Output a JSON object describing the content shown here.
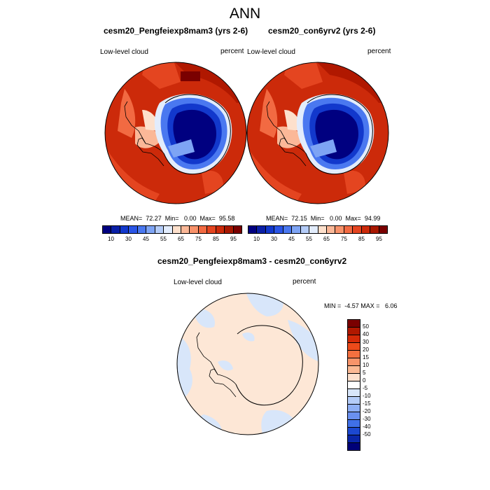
{
  "title": "ANN",
  "panels": [
    {
      "title": "cesm20_Pengfeiexp8mam3 (yrs 2-6)",
      "left_label": "Low-level cloud",
      "right_label": "percent",
      "stats": "MEAN=  72.27  Min=   0.00  Max=  95.58"
    },
    {
      "title": "cesm20_con6yrv2 (yrs 2-6)",
      "left_label": "Low-level cloud",
      "right_label": "percent",
      "stats": "MEAN=  72.15  Min=   0.00  Max=  94.99"
    }
  ],
  "diff_panel": {
    "title": "cesm20_Pengfeiexp8mam3 - cesm20_con6yrv2",
    "left_label": "Low-level cloud",
    "right_label": "percent",
    "stats": "MIN =  -4.57 MAX =   6.06"
  },
  "top_colorbar": {
    "colors": [
      "#000080",
      "#0a1fa6",
      "#1238cc",
      "#2a55e6",
      "#4a78f0",
      "#7ea4f4",
      "#b4ccf8",
      "#e2ecfc",
      "#fde0cc",
      "#fbb898",
      "#f8926a",
      "#f26a42",
      "#e44520",
      "#cc2a0a",
      "#a81800",
      "#7a0000"
    ],
    "labels": [
      "10",
      "30",
      "45",
      "55",
      "65",
      "75",
      "85",
      "95"
    ]
  },
  "diff_colorbar": {
    "colors": [
      "#7a0000",
      "#b01800",
      "#d42a08",
      "#ec4a1a",
      "#f4703f",
      "#f8946a",
      "#fbb994",
      "#fde0cc",
      "#ffffff",
      "#d8e6fa",
      "#b4ccf8",
      "#8eaff5",
      "#6a90f0",
      "#4070e8",
      "#1c48d0",
      "#0a26a8",
      "#000078"
    ],
    "labels": [
      "50",
      "40",
      "30",
      "20",
      "15",
      "10",
      "5",
      "0",
      "-5",
      "-10",
      "-15",
      "-20",
      "-30",
      "-40",
      "-50"
    ]
  },
  "chart_data": {
    "type": "heatmap",
    "title": "ANN",
    "projection": "south polar stereographic",
    "variable": "Low-level cloud",
    "units": "percent",
    "panels": [
      {
        "case": "cesm20_Pengfeiexp8mam3 (yrs 2-6)",
        "mean": 72.27,
        "min": 0.0,
        "max": 95.58,
        "contour_levels": [
          10,
          15,
          20,
          25,
          30,
          35,
          40,
          45,
          50,
          55,
          60,
          65,
          70,
          75,
          80,
          85,
          90,
          95
        ]
      },
      {
        "case": "cesm20_con6yrv2 (yrs 2-6)",
        "mean": 72.15,
        "min": 0.0,
        "max": 94.99,
        "contour_levels": [
          10,
          15,
          20,
          25,
          30,
          35,
          40,
          45,
          50,
          55,
          60,
          65,
          70,
          75,
          80,
          85,
          90,
          95
        ]
      },
      {
        "case": "cesm20_Pengfeiexp8mam3 - cesm20_con6yrv2",
        "min": -4.57,
        "max": 6.06,
        "contour_levels": [
          -50,
          -40,
          -30,
          -20,
          -15,
          -10,
          -5,
          0,
          5,
          10,
          15,
          20,
          30,
          40,
          50
        ]
      }
    ]
  }
}
